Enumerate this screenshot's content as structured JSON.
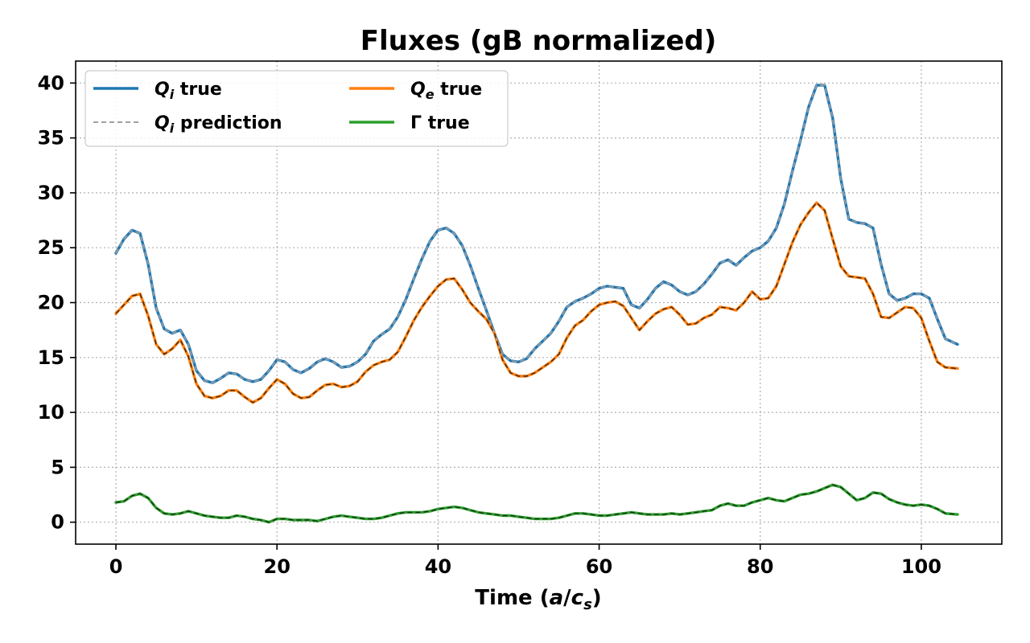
{
  "chart_data": {
    "type": "line",
    "title": "Fluxes (gB normalized)",
    "xlabel": "Time (a/c_s)",
    "xlabel_parts": {
      "prefix": "Time (",
      "a": "a",
      "slash": "/",
      "c": "c",
      "sub": "s",
      "suffix": ")"
    },
    "ylabel": "",
    "xlim": [
      -5,
      110
    ],
    "ylim": [
      -2,
      42
    ],
    "xticks": [
      0,
      20,
      40,
      60,
      80,
      100
    ],
    "yticks": [
      0,
      5,
      10,
      15,
      20,
      25,
      30,
      35,
      40
    ],
    "grid": true,
    "legend_location": "upper-left",
    "legend_columns": 2,
    "x": [
      0,
      1,
      2,
      3,
      4,
      5,
      6,
      7,
      8,
      9,
      10,
      11,
      12,
      13,
      14,
      15,
      16,
      17,
      18,
      19,
      20,
      21,
      22,
      23,
      24,
      25,
      26,
      27,
      28,
      29,
      30,
      31,
      32,
      33,
      34,
      35,
      36,
      37,
      38,
      39,
      40,
      41,
      42,
      43,
      44,
      45,
      46,
      47,
      48,
      49,
      50,
      51,
      52,
      53,
      54,
      55,
      56,
      57,
      58,
      59,
      60,
      61,
      62,
      63,
      64,
      65,
      66,
      67,
      68,
      69,
      70,
      71,
      72,
      73,
      74,
      75,
      76,
      77,
      78,
      79,
      80,
      81,
      82,
      83,
      84,
      85,
      86,
      87,
      88,
      89,
      90,
      91,
      92,
      93,
      94,
      95,
      96,
      97,
      98,
      99,
      100,
      101,
      102,
      103,
      104.5
    ],
    "series": [
      {
        "name": "Q_i true",
        "legend_label": {
          "sym": "Q",
          "sub": "i",
          "rest": " true"
        },
        "color": "#1f77b4",
        "style": "solid",
        "values": [
          24.5,
          25.8,
          26.6,
          26.3,
          23.5,
          19.5,
          17.6,
          17.2,
          17.5,
          16.2,
          13.8,
          12.9,
          12.7,
          13.1,
          13.6,
          13.5,
          13.0,
          12.8,
          13.0,
          13.8,
          14.8,
          14.6,
          13.9,
          13.6,
          14.0,
          14.6,
          14.9,
          14.6,
          14.1,
          14.2,
          14.6,
          15.3,
          16.5,
          17.1,
          17.6,
          18.7,
          20.3,
          22.2,
          24.0,
          25.6,
          26.6,
          26.8,
          26.3,
          25.2,
          23.4,
          21.3,
          19.3,
          17.2,
          15.3,
          14.7,
          14.6,
          14.9,
          15.8,
          16.5,
          17.2,
          18.3,
          19.6,
          20.1,
          20.4,
          20.8,
          21.3,
          21.5,
          21.4,
          21.3,
          19.8,
          19.5,
          20.3,
          21.3,
          21.9,
          21.6,
          21.0,
          20.7,
          21.0,
          21.7,
          22.6,
          23.6,
          23.9,
          23.4,
          24.1,
          24.7,
          25.0,
          25.6,
          26.8,
          29.0,
          32.0,
          34.8,
          37.8,
          39.8,
          39.8,
          36.8,
          31.3,
          27.6,
          27.3,
          27.2,
          26.8,
          23.5,
          20.8,
          20.2,
          20.4,
          20.8,
          20.8,
          20.4,
          18.5,
          16.7,
          16.2
        ]
      },
      {
        "name": "Q_e true",
        "legend_label": {
          "sym": "Q",
          "sub": "e",
          "rest": " true"
        },
        "color": "#ff7f0e",
        "style": "solid",
        "values": [
          19.0,
          19.8,
          20.6,
          20.8,
          18.8,
          16.2,
          15.3,
          15.8,
          16.6,
          15.1,
          12.6,
          11.5,
          11.3,
          11.5,
          12.0,
          12.0,
          11.4,
          10.9,
          11.3,
          12.2,
          13.0,
          12.6,
          11.7,
          11.3,
          11.4,
          12.0,
          12.5,
          12.6,
          12.3,
          12.4,
          12.8,
          13.7,
          14.3,
          14.6,
          14.8,
          15.5,
          16.9,
          18.4,
          19.6,
          20.6,
          21.5,
          22.1,
          22.2,
          21.2,
          20.0,
          19.2,
          18.5,
          17.2,
          14.8,
          13.6,
          13.3,
          13.3,
          13.6,
          14.1,
          14.6,
          15.3,
          16.8,
          17.9,
          18.4,
          19.2,
          19.8,
          20.0,
          20.1,
          19.7,
          18.6,
          17.5,
          18.3,
          19.0,
          19.4,
          19.6,
          18.9,
          18.0,
          18.1,
          18.6,
          18.9,
          19.6,
          19.5,
          19.3,
          20.0,
          21.0,
          20.3,
          20.4,
          21.5,
          23.5,
          25.5,
          27.1,
          28.2,
          29.1,
          28.4,
          25.8,
          23.3,
          22.4,
          22.3,
          22.2,
          20.8,
          18.7,
          18.6,
          19.1,
          19.6,
          19.5,
          18.6,
          16.5,
          14.6,
          14.1,
          14.0
        ]
      },
      {
        "name": "Γ true",
        "legend_label": {
          "sym": "Γ",
          "sub": "",
          "rest": " true"
        },
        "color": "#2ca02c",
        "style": "solid",
        "values": [
          1.8,
          1.9,
          2.4,
          2.6,
          2.2,
          1.3,
          0.8,
          0.7,
          0.8,
          1.0,
          0.8,
          0.6,
          0.5,
          0.4,
          0.4,
          0.6,
          0.5,
          0.3,
          0.2,
          0.0,
          0.3,
          0.3,
          0.2,
          0.2,
          0.2,
          0.1,
          0.3,
          0.5,
          0.6,
          0.5,
          0.4,
          0.3,
          0.3,
          0.4,
          0.6,
          0.8,
          0.9,
          0.9,
          0.9,
          1.0,
          1.2,
          1.3,
          1.4,
          1.3,
          1.1,
          0.9,
          0.8,
          0.7,
          0.6,
          0.6,
          0.5,
          0.4,
          0.3,
          0.3,
          0.3,
          0.4,
          0.6,
          0.8,
          0.8,
          0.7,
          0.6,
          0.6,
          0.7,
          0.8,
          0.9,
          0.8,
          0.7,
          0.7,
          0.7,
          0.8,
          0.7,
          0.8,
          0.9,
          1.0,
          1.1,
          1.5,
          1.7,
          1.5,
          1.5,
          1.8,
          2.0,
          2.2,
          2.0,
          1.9,
          2.2,
          2.5,
          2.6,
          2.8,
          3.1,
          3.4,
          3.2,
          2.6,
          2.0,
          2.2,
          2.7,
          2.6,
          2.1,
          1.8,
          1.6,
          1.5,
          1.6,
          1.5,
          1.2,
          0.8,
          0.7
        ]
      }
    ],
    "predictions": [
      {
        "name": "Q_i prediction",
        "of": "Q_i true",
        "legend_label": {
          "sym": "Q",
          "sub": "i",
          "rest": " prediction"
        },
        "color": "#a0a0a0",
        "style": "dashed"
      },
      {
        "name": "Q_e prediction",
        "of": "Q_e true",
        "legend_label": null,
        "color": "#1a1a1a",
        "style": "dashed"
      },
      {
        "name": "Γ prediction",
        "of": "Γ true",
        "legend_label": null,
        "color": "#1a1a1a",
        "style": "dashed"
      }
    ]
  }
}
